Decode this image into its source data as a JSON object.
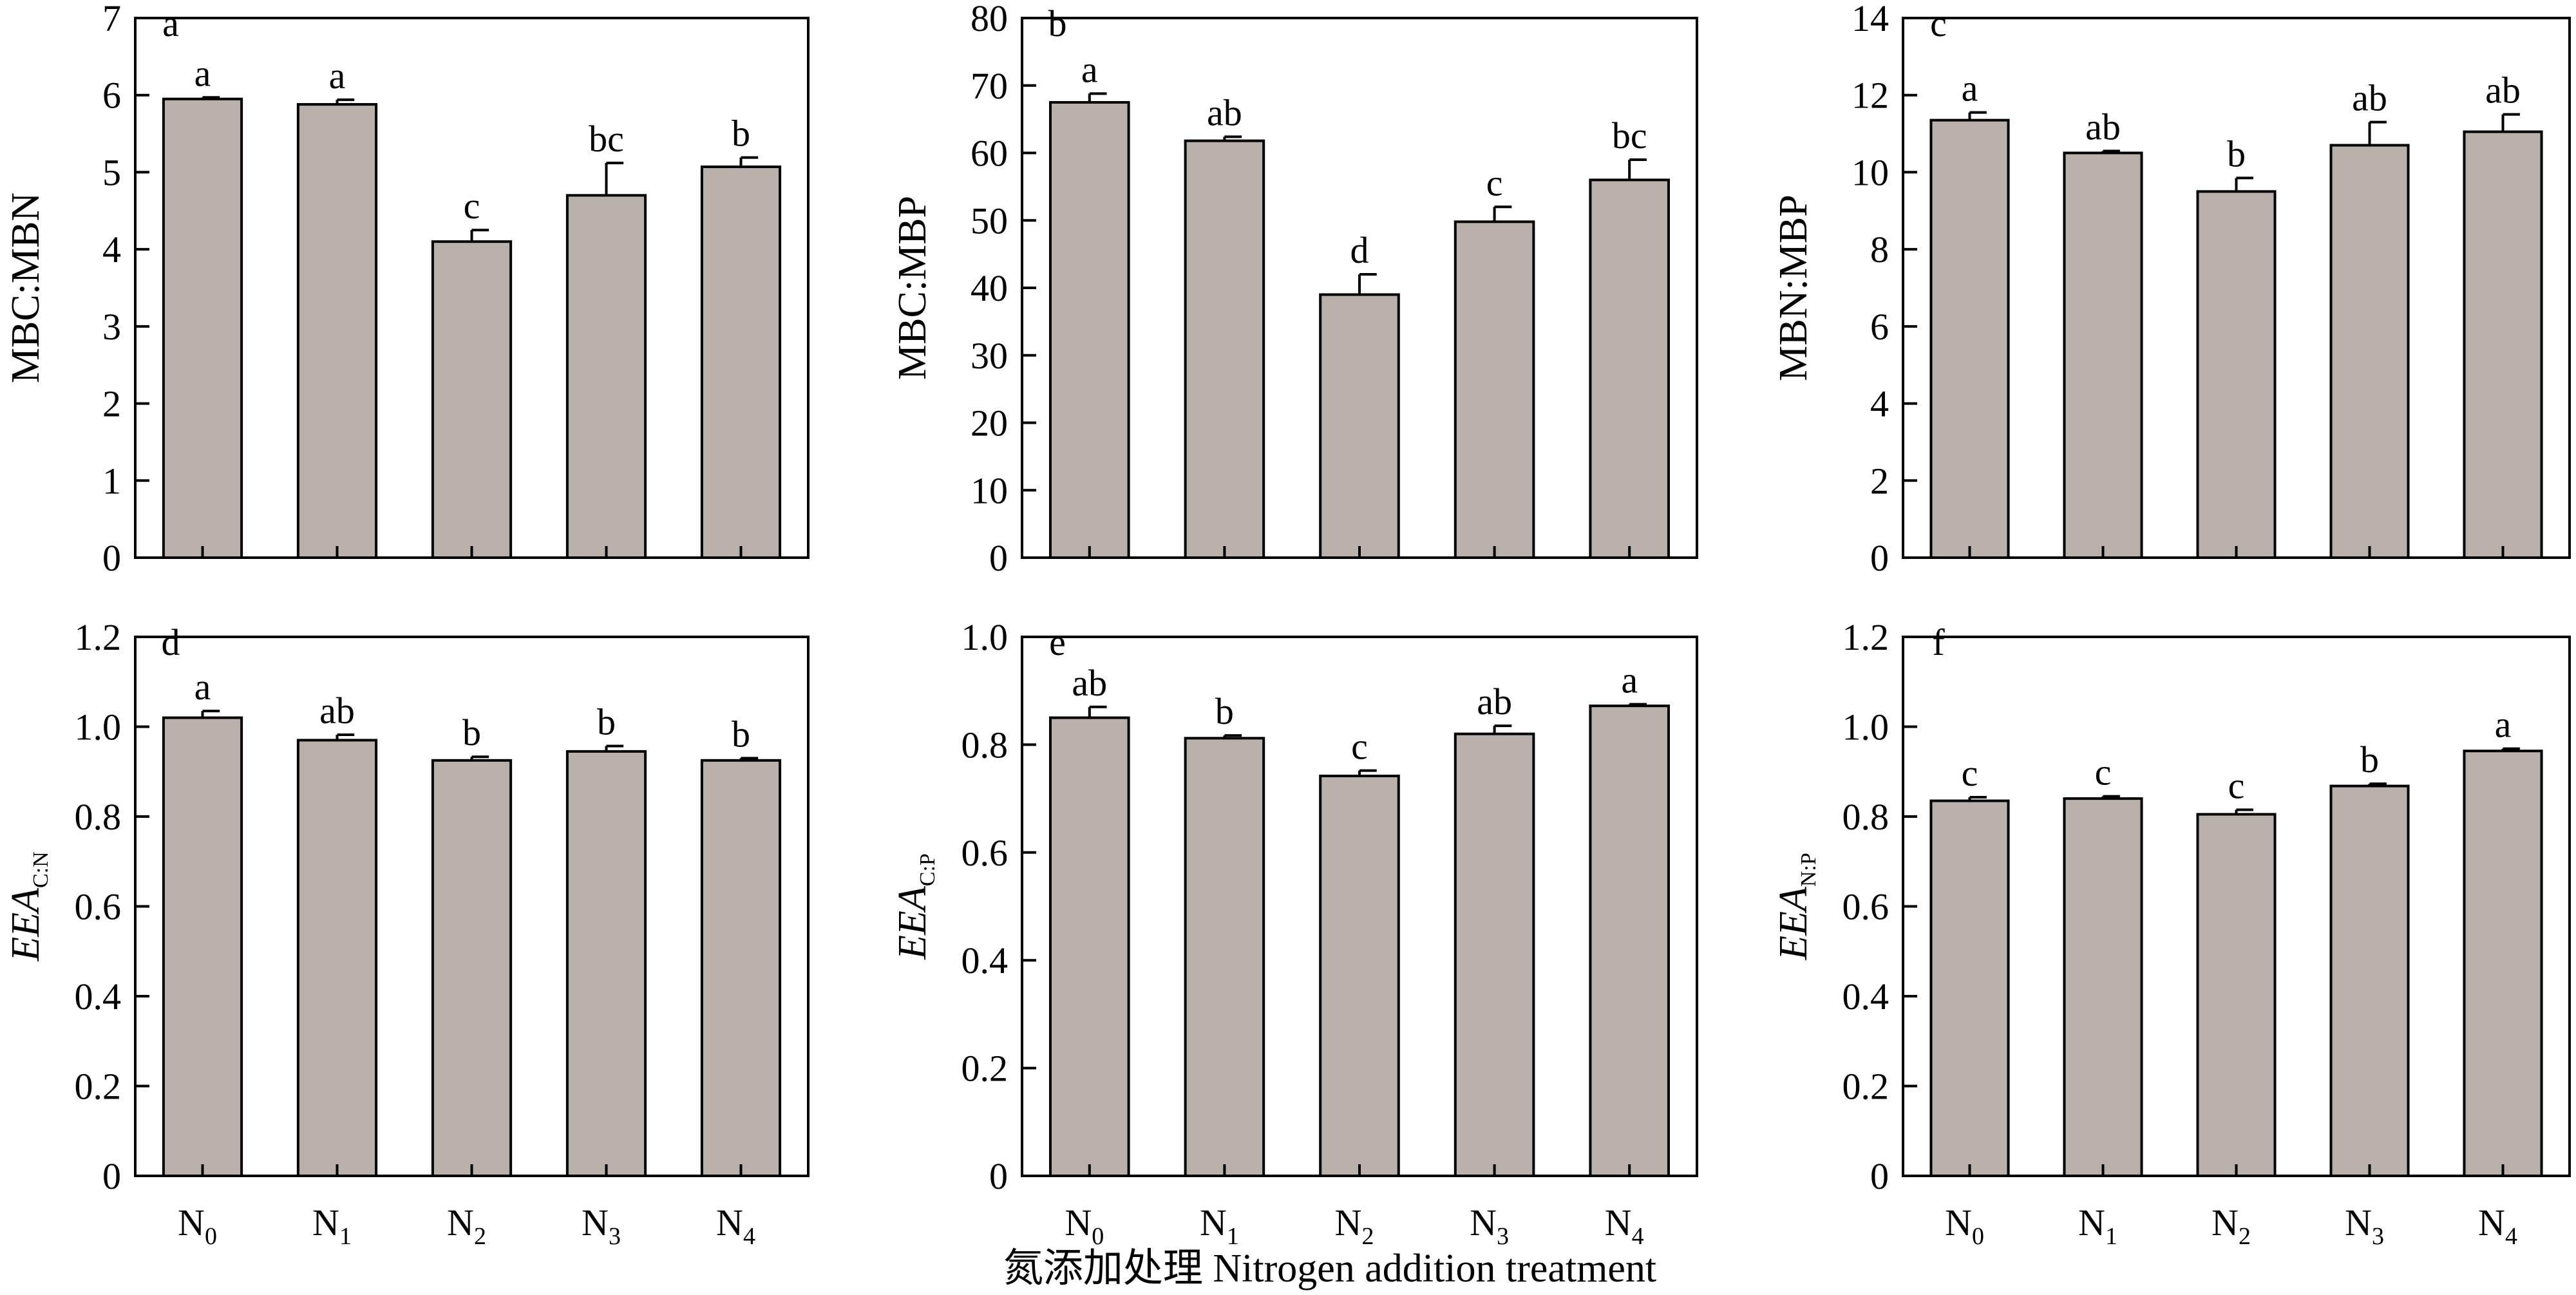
{
  "figure": {
    "shared_xlabel": "氮添加处理 Nitrogen addition treatment",
    "bar_color": "#b9b0ab",
    "stroke_color": "#000000"
  },
  "chart_data": [
    {
      "type": "bar",
      "panel_label": "a",
      "title": "",
      "ylabel": "MBC:MBN",
      "ylabel_italic_part": "",
      "ylabel_subscript": "",
      "xlabel": "",
      "categories": [
        {
          "main": "N",
          "sub": "0"
        },
        {
          "main": "N",
          "sub": "1"
        },
        {
          "main": "N",
          "sub": "2"
        },
        {
          "main": "N",
          "sub": "3"
        },
        {
          "main": "N",
          "sub": "4"
        }
      ],
      "show_category_labels": false,
      "values": [
        5.95,
        5.88,
        4.1,
        4.7,
        5.07
      ],
      "errors": [
        0.02,
        0.06,
        0.15,
        0.42,
        0.12
      ],
      "significance_letters": [
        "a",
        "a",
        "c",
        "bc",
        "b"
      ],
      "ylim": [
        0,
        7
      ],
      "yticks": [
        0,
        1,
        2,
        3,
        4,
        5,
        6,
        7
      ],
      "ytick_labels": [
        "0",
        "1",
        "2",
        "3",
        "4",
        "5",
        "6",
        "7"
      ],
      "grid": false
    },
    {
      "type": "bar",
      "panel_label": "b",
      "title": "",
      "ylabel": "MBC:MBP",
      "ylabel_italic_part": "",
      "ylabel_subscript": "",
      "xlabel": "",
      "categories": [
        {
          "main": "N",
          "sub": "0"
        },
        {
          "main": "N",
          "sub": "1"
        },
        {
          "main": "N",
          "sub": "2"
        },
        {
          "main": "N",
          "sub": "3"
        },
        {
          "main": "N",
          "sub": "4"
        }
      ],
      "show_category_labels": false,
      "values": [
        67.5,
        61.8,
        39.0,
        49.8,
        56.0
      ],
      "errors": [
        1.3,
        0.6,
        3.0,
        2.2,
        3.0
      ],
      "significance_letters": [
        "a",
        "ab",
        "d",
        "c",
        "bc"
      ],
      "ylim": [
        0,
        80
      ],
      "yticks": [
        0,
        10,
        20,
        30,
        40,
        50,
        60,
        70,
        80
      ],
      "ytick_labels": [
        "0",
        "10",
        "20",
        "30",
        "40",
        "50",
        "60",
        "70",
        "80"
      ],
      "grid": false
    },
    {
      "type": "bar",
      "panel_label": "c",
      "title": "",
      "ylabel": "MBN:MBP",
      "ylabel_italic_part": "",
      "ylabel_subscript": "",
      "xlabel": "",
      "categories": [
        {
          "main": "N",
          "sub": "0"
        },
        {
          "main": "N",
          "sub": "1"
        },
        {
          "main": "N",
          "sub": "2"
        },
        {
          "main": "N",
          "sub": "3"
        },
        {
          "main": "N",
          "sub": "4"
        }
      ],
      "show_category_labels": false,
      "values": [
        11.35,
        10.5,
        9.5,
        10.7,
        11.05
      ],
      "errors": [
        0.2,
        0.05,
        0.35,
        0.6,
        0.45
      ],
      "significance_letters": [
        "a",
        "ab",
        "b",
        "ab",
        "ab"
      ],
      "ylim": [
        0,
        14
      ],
      "yticks": [
        0,
        2,
        4,
        6,
        8,
        10,
        12,
        14
      ],
      "ytick_labels": [
        "0",
        "2",
        "4",
        "6",
        "8",
        "10",
        "12",
        "14"
      ],
      "grid": false
    },
    {
      "type": "bar",
      "panel_label": "d",
      "title": "",
      "ylabel": "",
      "ylabel_italic_part": "EEA",
      "ylabel_subscript": "C:N",
      "xlabel": "",
      "categories": [
        {
          "main": "N",
          "sub": "0"
        },
        {
          "main": "N",
          "sub": "1"
        },
        {
          "main": "N",
          "sub": "2"
        },
        {
          "main": "N",
          "sub": "3"
        },
        {
          "main": "N",
          "sub": "4"
        }
      ],
      "show_category_labels": true,
      "values": [
        1.02,
        0.97,
        0.925,
        0.945,
        0.925
      ],
      "errors": [
        0.015,
        0.012,
        0.008,
        0.012,
        0.005
      ],
      "significance_letters": [
        "a",
        "ab",
        "b",
        "b",
        "b"
      ],
      "ylim": [
        0,
        1.2
      ],
      "yticks": [
        0,
        0.2,
        0.4,
        0.6,
        0.8,
        1.0,
        1.2
      ],
      "ytick_labels": [
        "0",
        "0.2",
        "0.4",
        "0.6",
        "0.8",
        "1.0",
        "1.2"
      ],
      "grid": false
    },
    {
      "type": "bar",
      "panel_label": "e",
      "title": "",
      "ylabel": "",
      "ylabel_italic_part": "EEA",
      "ylabel_subscript": "C:P",
      "xlabel": "",
      "categories": [
        {
          "main": "N",
          "sub": "0"
        },
        {
          "main": "N",
          "sub": "1"
        },
        {
          "main": "N",
          "sub": "2"
        },
        {
          "main": "N",
          "sub": "3"
        },
        {
          "main": "N",
          "sub": "4"
        }
      ],
      "show_category_labels": true,
      "values": [
        0.85,
        0.812,
        0.742,
        0.82,
        0.872
      ],
      "errors": [
        0.02,
        0.005,
        0.01,
        0.015,
        0.003
      ],
      "significance_letters": [
        "ab",
        "b",
        "c",
        "ab",
        "a"
      ],
      "ylim": [
        0,
        1.0
      ],
      "yticks": [
        0,
        0.2,
        0.4,
        0.6,
        0.8,
        1.0
      ],
      "ytick_labels": [
        "0",
        "0.2",
        "0.4",
        "0.6",
        "0.8",
        "1.0"
      ],
      "grid": false
    },
    {
      "type": "bar",
      "panel_label": "f",
      "title": "",
      "ylabel": "",
      "ylabel_italic_part": "EEA",
      "ylabel_subscript": "N:P",
      "xlabel": "",
      "categories": [
        {
          "main": "N",
          "sub": "0"
        },
        {
          "main": "N",
          "sub": "1"
        },
        {
          "main": "N",
          "sub": "2"
        },
        {
          "main": "N",
          "sub": "3"
        },
        {
          "main": "N",
          "sub": "4"
        }
      ],
      "show_category_labels": true,
      "values": [
        0.835,
        0.84,
        0.805,
        0.868,
        0.946
      ],
      "errors": [
        0.008,
        0.005,
        0.01,
        0.005,
        0.005
      ],
      "significance_letters": [
        "c",
        "c",
        "c",
        "b",
        "a"
      ],
      "ylim": [
        0,
        1.2
      ],
      "yticks": [
        0,
        0.2,
        0.4,
        0.6,
        0.8,
        1.0,
        1.2
      ],
      "ytick_labels": [
        "0",
        "0.2",
        "0.4",
        "0.6",
        "0.8",
        "1.0",
        "1.2"
      ],
      "grid": false
    }
  ]
}
